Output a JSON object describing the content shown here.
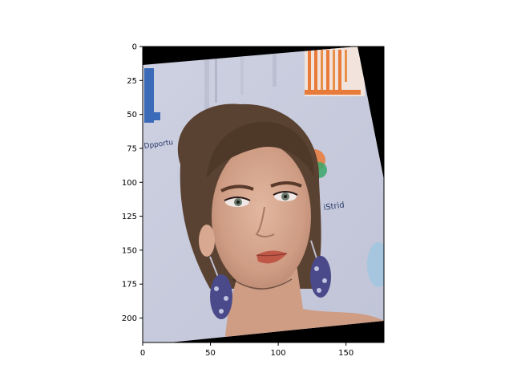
{
  "chart_data": {
    "type": "image",
    "title": "",
    "xlabel": "",
    "ylabel": "",
    "xlim": [
      0,
      178
    ],
    "ylim": [
      218,
      0
    ],
    "x_ticks": [
      0,
      50,
      100,
      150
    ],
    "y_ticks": [
      0,
      25,
      50,
      75,
      100,
      125,
      150,
      175,
      200
    ],
    "x_tick_labels": [
      "0",
      "50",
      "100",
      "150"
    ],
    "y_tick_labels": [
      "0",
      "25",
      "50",
      "75",
      "100",
      "125",
      "150",
      "175",
      "200"
    ],
    "grid": false,
    "image_content": "rotated face photo",
    "background_text": [
      "Dpportu",
      "iStrid"
    ],
    "colors": {
      "padding": "#000000",
      "backdrop": "#c8ccdc",
      "hair": "#5a4232",
      "skin": "#d8a890",
      "lips": "#c05848",
      "earring": "#4a4a8a",
      "orange_logo": "#e87a3a",
      "blue_logo": "#3a6ab8"
    }
  }
}
